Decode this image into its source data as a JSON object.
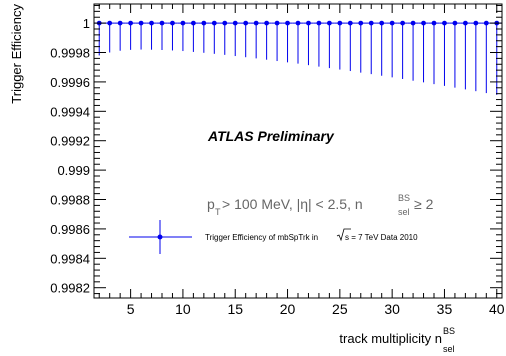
{
  "chart_data": {
    "type": "scatter",
    "ylabel": "Trigger Efficiency",
    "xlabel_main": "track multiplicity n",
    "xlabel_sup": "BS",
    "xlabel_sub": "sel",
    "xlim": [
      1.5,
      40.5
    ],
    "ylim": [
      0.99813,
      1.00013
    ],
    "x_ticks": [
      5,
      10,
      15,
      20,
      25,
      30,
      35,
      40
    ],
    "y_ticks": [
      0.9982,
      0.9984,
      0.9986,
      0.9988,
      0.999,
      0.9992,
      0.9994,
      0.9996,
      0.9998,
      1
    ],
    "y_tick_labels": [
      "0.9982",
      "0.9984",
      "0.9986",
      "0.9988",
      "0.999",
      "0.9992",
      "0.9994",
      "0.9996",
      "0.9998",
      "1"
    ],
    "grid": false,
    "color": "#0000ee",
    "atlas_label": "ATLAS Preliminary",
    "cut_text": {
      "pt_p": "p",
      "pt_sub": "T",
      "rest": " > 100 MeV, |η| < 2.5, n",
      "n_sup": "BS",
      "n_sub": "sel",
      "tail": " ≥ 2"
    },
    "legend": {
      "placement": "lower-left",
      "text_before": "Trigger Efficiency of mbSpTrk in",
      "text_after": "s = 7 TeV Data 2010"
    },
    "series": [
      {
        "x": [
          2,
          3,
          4,
          5,
          6,
          7,
          8,
          9,
          10,
          11,
          12,
          13,
          14,
          15,
          16,
          17,
          18,
          19,
          20,
          21,
          22,
          23,
          24,
          25,
          26,
          27,
          28,
          29,
          30,
          31,
          32,
          33,
          34,
          35,
          36,
          37,
          38,
          39,
          40
        ],
        "y": [
          1,
          1,
          1,
          1,
          1,
          1,
          1,
          1,
          1,
          1,
          1,
          1,
          1,
          1,
          1,
          1,
          1,
          1,
          1,
          1,
          1,
          1,
          1,
          1,
          1,
          1,
          1,
          1,
          1,
          1,
          1,
          1,
          1,
          1,
          1,
          1,
          1,
          1,
          1
        ],
        "y_err_low": [
          0.00022,
          0.0002,
          0.000188,
          0.000182,
          0.00018,
          0.000181,
          0.000183,
          0.000186,
          0.00019,
          0.000196,
          0.000202,
          0.000209,
          0.000216,
          0.000224,
          0.000232,
          0.00024,
          0.000249,
          0.000258,
          0.000267,
          0.000276,
          0.000286,
          0.000296,
          0.000306,
          0.000316,
          0.000326,
          0.000337,
          0.000347,
          0.000358,
          0.000369,
          0.00038,
          0.000392,
          0.000403,
          0.000415,
          0.000427,
          0.000439,
          0.000451,
          0.000463,
          0.000476,
          0.000488
        ]
      }
    ]
  }
}
